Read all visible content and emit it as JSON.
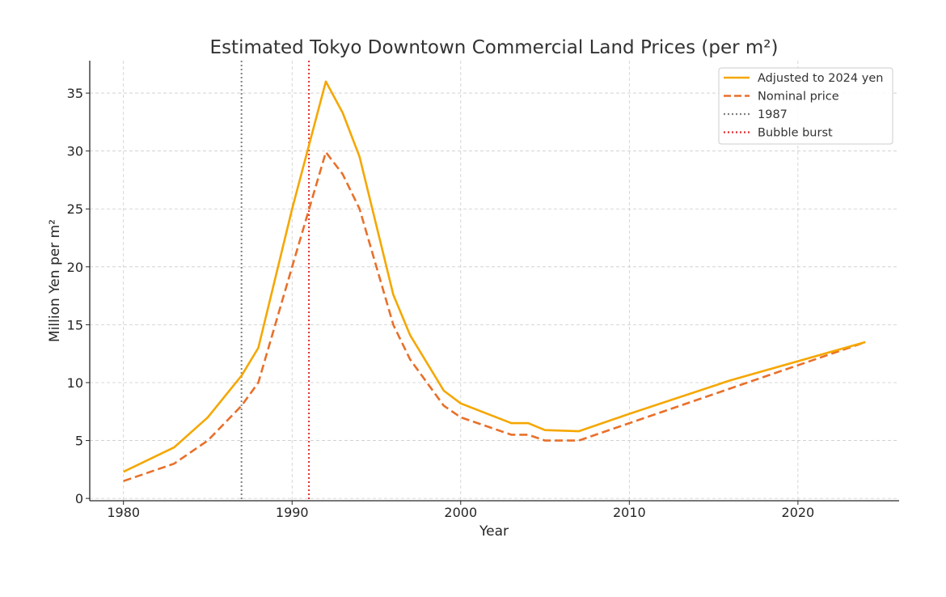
{
  "chart_data": {
    "type": "line",
    "title": "Estimated Tokyo Downtown Commercial Land Prices (per m²)",
    "xlabel": "Year",
    "ylabel": "Million Yen per m²",
    "xlim": [
      1978,
      2026
    ],
    "ylim": [
      -0.2,
      37.8
    ],
    "xticks": [
      1980,
      1990,
      2000,
      2010,
      2020
    ],
    "yticks": [
      0,
      5,
      10,
      15,
      20,
      25,
      30,
      35
    ],
    "grid": true,
    "legend_position": "top-right",
    "series": [
      {
        "name": "Adjusted to 2024 yen",
        "color": "#f5a700",
        "style": "solid",
        "x": [
          1980,
          1983,
          1985,
          1987,
          1988,
          1990,
          1992,
          1993,
          1994,
          1996,
          1997,
          1999,
          2000,
          2003,
          2004,
          2005,
          2007,
          2010,
          2016,
          2024
        ],
        "y": [
          2.3,
          4.4,
          7.0,
          10.6,
          13.0,
          25.0,
          36.0,
          33.3,
          29.5,
          17.6,
          14.1,
          9.3,
          8.2,
          6.5,
          6.5,
          5.9,
          5.8,
          7.3,
          10.2,
          13.5
        ]
      },
      {
        "name": "Nominal price",
        "color": "#e8702a",
        "style": "dashed",
        "x": [
          1980,
          1983,
          1985,
          1987,
          1988,
          1990,
          1992,
          1993,
          1994,
          1996,
          1997,
          1999,
          2000,
          2003,
          2004,
          2005,
          2007,
          2010,
          2016,
          2024
        ],
        "y": [
          1.5,
          3.0,
          5.0,
          8.0,
          10.0,
          20.0,
          29.9,
          28.0,
          25.0,
          15.0,
          12.0,
          8.0,
          7.0,
          5.5,
          5.5,
          5.0,
          5.0,
          6.5,
          9.5,
          13.5
        ]
      }
    ],
    "vlines": [
      {
        "name": "1987",
        "x": 1987,
        "color": "#808080",
        "style": "dotted"
      },
      {
        "name": "Bubble burst",
        "x": 1991,
        "color": "#e32b2b",
        "style": "dotted"
      }
    ]
  }
}
